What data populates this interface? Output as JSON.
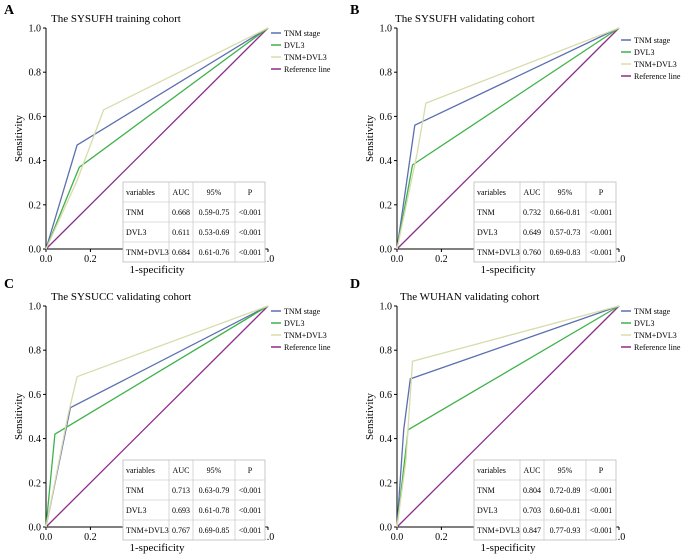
{
  "colors": {
    "tnm": "#5b6eb0",
    "dvl3": "#3fb24a",
    "combo": "#d8dcaa",
    "reference": "#8c2c8c",
    "axis": "#000000",
    "table_border": "#bdbdbd"
  },
  "shared": {
    "xlabel": "1-specificity",
    "ylabel": "Sensitivity",
    "ticks": [
      "0.0",
      "0.2",
      "0.4",
      "0.6",
      "0.8",
      "1.0"
    ],
    "legend": [
      "TNM stage",
      "DVL3",
      "TNM+DVL3",
      "Reference line"
    ],
    "table_headers": [
      "variables",
      "AUC",
      "95%",
      "P"
    ]
  },
  "chart_data": [
    {
      "type": "line",
      "panel_label": "A",
      "title": "The SYSUFH training cohort",
      "xlabel": "1-specificity",
      "ylabel": "Sensitivity",
      "xlim": [
        0,
        1
      ],
      "ylim": [
        0,
        1
      ],
      "legend_position": "top-right",
      "series": [
        {
          "name": "TNM stage",
          "x": [
            0,
            0.14,
            1
          ],
          "y": [
            0,
            0.47,
            1
          ]
        },
        {
          "name": "DVL3",
          "x": [
            0,
            0.15,
            1
          ],
          "y": [
            0,
            0.37,
            1
          ]
        },
        {
          "name": "TNM+DVL3",
          "x": [
            0,
            0.14,
            0.26,
            1
          ],
          "y": [
            0,
            0.31,
            0.63,
            1
          ]
        },
        {
          "name": "Reference line",
          "x": [
            0,
            1
          ],
          "y": [
            0,
            1
          ]
        }
      ],
      "table": {
        "headers": [
          "variables",
          "AUC",
          "95%",
          "P"
        ],
        "rows": [
          [
            "TNM",
            "0.668",
            "0.59-0.75",
            "<0.001"
          ],
          [
            "DVL3",
            "0.611",
            "0.53-0.69",
            "<0.001"
          ],
          [
            "TNM+DVL3",
            "0.684",
            "0.61-0.76",
            "<0.001"
          ]
        ]
      }
    },
    {
      "type": "line",
      "panel_label": "B",
      "title": "The SYSUFH validating cohort",
      "xlabel": "1-specificity",
      "ylabel": "Sensitivity",
      "xlim": [
        0,
        1
      ],
      "ylim": [
        0,
        1
      ],
      "legend_position": "top-right",
      "series": [
        {
          "name": "TNM stage",
          "x": [
            0,
            0.08,
            1
          ],
          "y": [
            0,
            0.56,
            1
          ]
        },
        {
          "name": "DVL3",
          "x": [
            0,
            0.07,
            1
          ],
          "y": [
            0,
            0.38,
            1
          ]
        },
        {
          "name": "TNM+DVL3",
          "x": [
            0,
            0.09,
            0.13,
            1
          ],
          "y": [
            0,
            0.43,
            0.66,
            1
          ]
        },
        {
          "name": "Reference line",
          "x": [
            0,
            1
          ],
          "y": [
            0,
            1
          ]
        }
      ],
      "table": {
        "headers": [
          "variables",
          "AUC",
          "95%",
          "P"
        ],
        "rows": [
          [
            "TNM",
            "0.732",
            "0.66-0.81",
            "<0.001"
          ],
          [
            "DVL3",
            "0.649",
            "0.57-0.73",
            "<0.001"
          ],
          [
            "TNM+DVL3",
            "0.760",
            "0.69-0.83",
            "<0.001"
          ]
        ]
      }
    },
    {
      "type": "line",
      "panel_label": "C",
      "title": "The SYSUCC validating cohort",
      "xlabel": "1-specificity",
      "ylabel": "Sensitivity",
      "xlim": [
        0,
        1
      ],
      "ylim": [
        0,
        1
      ],
      "legend_position": "top-right",
      "series": [
        {
          "name": "TNM stage",
          "x": [
            0,
            0.11,
            1
          ],
          "y": [
            0,
            0.54,
            1
          ]
        },
        {
          "name": "DVL3",
          "x": [
            0,
            0.04,
            1
          ],
          "y": [
            0,
            0.42,
            1
          ]
        },
        {
          "name": "TNM+DVL3",
          "x": [
            0,
            0.1,
            0.14,
            1
          ],
          "y": [
            0,
            0.51,
            0.68,
            1
          ]
        },
        {
          "name": "Reference line",
          "x": [
            0,
            1
          ],
          "y": [
            0,
            1
          ]
        }
      ],
      "table": {
        "headers": [
          "variables",
          "AUC",
          "95%",
          "P"
        ],
        "rows": [
          [
            "TNM",
            "0.713",
            "0.63-0.79",
            "<0.001"
          ],
          [
            "DVL3",
            "0.693",
            "0.61-0.78",
            "<0.001"
          ],
          [
            "TNM+DVL3",
            "0.767",
            "0.69-0.85",
            "<0.001"
          ]
        ]
      }
    },
    {
      "type": "line",
      "panel_label": "D",
      "title": "The WUHAN validating cohort",
      "xlabel": "1-specificity",
      "ylabel": "Sensitivity",
      "xlim": [
        0,
        1
      ],
      "ylim": [
        0,
        1
      ],
      "legend_position": "top-right",
      "series": [
        {
          "name": "TNM stage",
          "x": [
            0,
            0.03,
            0.06,
            1
          ],
          "y": [
            0,
            0.44,
            0.67,
            1
          ]
        },
        {
          "name": "DVL3",
          "x": [
            0,
            0.05,
            1
          ],
          "y": [
            0,
            0.44,
            1
          ]
        },
        {
          "name": "TNM+DVL3",
          "x": [
            0,
            0.04,
            0.07,
            1
          ],
          "y": [
            0,
            0.3,
            0.75,
            1
          ]
        },
        {
          "name": "Reference line",
          "x": [
            0,
            1
          ],
          "y": [
            0,
            1
          ]
        }
      ],
      "table": {
        "headers": [
          "variables",
          "AUC",
          "95%",
          "P"
        ],
        "rows": [
          [
            "TNM",
            "0.804",
            "0.72-0.89",
            "<0.001"
          ],
          [
            "DVL3",
            "0.703",
            "0.60-0.81",
            "<0.001"
          ],
          [
            "TNM+DVL3",
            "0.847",
            "0.77-0.93",
            "<0.001"
          ]
        ]
      }
    }
  ]
}
